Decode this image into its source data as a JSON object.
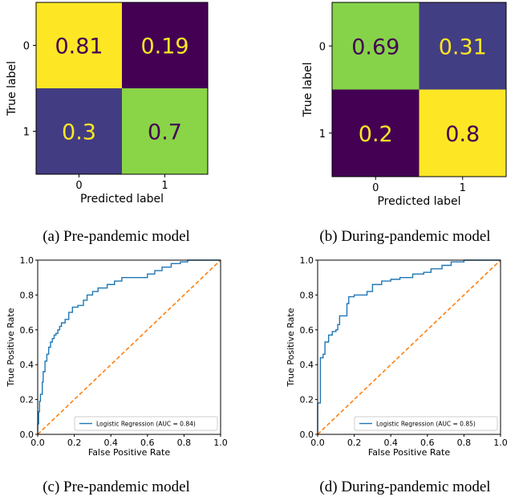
{
  "chart_data": [
    {
      "type": "heatmap",
      "caption": "(a) Pre-pandemic model",
      "xlabel": "Predicted label",
      "ylabel": "True label",
      "x_ticks": [
        "0",
        "1"
      ],
      "y_ticks": [
        "0",
        "1"
      ],
      "values": [
        [
          0.81,
          0.19
        ],
        [
          0.3,
          0.7
        ]
      ],
      "value_labels": [
        [
          "0.81",
          "0.19"
        ],
        [
          "0.3",
          "0.7"
        ]
      ],
      "colormap": "viridis"
    },
    {
      "type": "heatmap",
      "caption": "(b) During-pandemic model",
      "xlabel": "Predicted label",
      "ylabel": "True label",
      "x_ticks": [
        "0",
        "1"
      ],
      "y_ticks": [
        "0",
        "1"
      ],
      "values": [
        [
          0.69,
          0.31
        ],
        [
          0.2,
          0.8
        ]
      ],
      "value_labels": [
        [
          "0.69",
          "0.31"
        ],
        [
          "0.2",
          "0.8"
        ]
      ],
      "colormap": "viridis"
    },
    {
      "type": "line",
      "caption": "(c) Pre-pandemic model",
      "xlabel": "False Positive Rate",
      "ylabel": "True Positive Rate",
      "xlim": [
        0,
        1
      ],
      "ylim": [
        0,
        1
      ],
      "x_ticks": [
        "0.0",
        "0.2",
        "0.4",
        "0.6",
        "0.8",
        "1.0"
      ],
      "y_ticks": [
        "0.0",
        "0.2",
        "0.4",
        "0.6",
        "0.8",
        "1.0"
      ],
      "legend": "lower-right",
      "series": [
        {
          "name": "Logistic Regression (AUC = 0.84)",
          "color": "#1f77b4",
          "points": [
            [
              0,
              0
            ],
            [
              0,
              0.06
            ],
            [
              0.005,
              0.06
            ],
            [
              0.005,
              0.13
            ],
            [
              0.01,
              0.13
            ],
            [
              0.01,
              0.19
            ],
            [
              0.015,
              0.19
            ],
            [
              0.015,
              0.23
            ],
            [
              0.025,
              0.23
            ],
            [
              0.025,
              0.3
            ],
            [
              0.03,
              0.3
            ],
            [
              0.03,
              0.36
            ],
            [
              0.04,
              0.36
            ],
            [
              0.04,
              0.42
            ],
            [
              0.05,
              0.42
            ],
            [
              0.05,
              0.46
            ],
            [
              0.06,
              0.46
            ],
            [
              0.06,
              0.5
            ],
            [
              0.07,
              0.5
            ],
            [
              0.07,
              0.53
            ],
            [
              0.08,
              0.53
            ],
            [
              0.08,
              0.55
            ],
            [
              0.09,
              0.55
            ],
            [
              0.09,
              0.57
            ],
            [
              0.1,
              0.57
            ],
            [
              0.1,
              0.58
            ],
            [
              0.11,
              0.58
            ],
            [
              0.11,
              0.6
            ],
            [
              0.12,
              0.6
            ],
            [
              0.12,
              0.62
            ],
            [
              0.13,
              0.62
            ],
            [
              0.13,
              0.64
            ],
            [
              0.15,
              0.64
            ],
            [
              0.15,
              0.66
            ],
            [
              0.17,
              0.66
            ],
            [
              0.17,
              0.7
            ],
            [
              0.19,
              0.7
            ],
            [
              0.19,
              0.73
            ],
            [
              0.22,
              0.73
            ],
            [
              0.22,
              0.74
            ],
            [
              0.25,
              0.74
            ],
            [
              0.25,
              0.77
            ],
            [
              0.27,
              0.77
            ],
            [
              0.27,
              0.8
            ],
            [
              0.3,
              0.8
            ],
            [
              0.3,
              0.82
            ],
            [
              0.33,
              0.82
            ],
            [
              0.33,
              0.84
            ],
            [
              0.38,
              0.84
            ],
            [
              0.38,
              0.86
            ],
            [
              0.42,
              0.86
            ],
            [
              0.42,
              0.88
            ],
            [
              0.46,
              0.88
            ],
            [
              0.46,
              0.9
            ],
            [
              0.6,
              0.9
            ],
            [
              0.6,
              0.92
            ],
            [
              0.64,
              0.92
            ],
            [
              0.64,
              0.94
            ],
            [
              0.68,
              0.94
            ],
            [
              0.68,
              0.96
            ],
            [
              0.73,
              0.96
            ],
            [
              0.73,
              0.98
            ],
            [
              0.78,
              0.98
            ],
            [
              0.78,
              0.99
            ],
            [
              0.82,
              0.99
            ],
            [
              0.82,
              1
            ],
            [
              1,
              1
            ]
          ]
        },
        {
          "name": "chance",
          "color": "#ff7f0e",
          "dashed": true,
          "points": [
            [
              0,
              0
            ],
            [
              1,
              1
            ]
          ]
        }
      ]
    },
    {
      "type": "line",
      "caption": "(d) During-pandemic model",
      "xlabel": "False Positive Rate",
      "ylabel": "True Positive Rate",
      "xlim": [
        0,
        1
      ],
      "ylim": [
        0,
        1
      ],
      "x_ticks": [
        "0.0",
        "0.2",
        "0.4",
        "0.6",
        "0.8",
        "1.0"
      ],
      "y_ticks": [
        "0.0",
        "0.2",
        "0.4",
        "0.6",
        "0.8",
        "1.0"
      ],
      "legend": "lower-right",
      "series": [
        {
          "name": "Logistic Regression (AUC = 0.85)",
          "color": "#1f77b4",
          "points": [
            [
              0,
              0
            ],
            [
              0,
              0.18
            ],
            [
              0.015,
              0.18
            ],
            [
              0.015,
              0.44
            ],
            [
              0.03,
              0.44
            ],
            [
              0.03,
              0.46
            ],
            [
              0.04,
              0.46
            ],
            [
              0.04,
              0.53
            ],
            [
              0.06,
              0.53
            ],
            [
              0.06,
              0.57
            ],
            [
              0.08,
              0.57
            ],
            [
              0.08,
              0.59
            ],
            [
              0.1,
              0.59
            ],
            [
              0.1,
              0.6
            ],
            [
              0.11,
              0.6
            ],
            [
              0.11,
              0.63
            ],
            [
              0.12,
              0.63
            ],
            [
              0.12,
              0.68
            ],
            [
              0.16,
              0.68
            ],
            [
              0.16,
              0.75
            ],
            [
              0.17,
              0.75
            ],
            [
              0.17,
              0.79
            ],
            [
              0.2,
              0.79
            ],
            [
              0.2,
              0.8
            ],
            [
              0.27,
              0.8
            ],
            [
              0.27,
              0.82
            ],
            [
              0.3,
              0.82
            ],
            [
              0.3,
              0.86
            ],
            [
              0.35,
              0.86
            ],
            [
              0.35,
              0.88
            ],
            [
              0.4,
              0.88
            ],
            [
              0.4,
              0.89
            ],
            [
              0.45,
              0.89
            ],
            [
              0.45,
              0.9
            ],
            [
              0.52,
              0.9
            ],
            [
              0.52,
              0.92
            ],
            [
              0.58,
              0.92
            ],
            [
              0.58,
              0.93
            ],
            [
              0.62,
              0.93
            ],
            [
              0.62,
              0.95
            ],
            [
              0.68,
              0.95
            ],
            [
              0.68,
              0.97
            ],
            [
              0.73,
              0.97
            ],
            [
              0.73,
              0.99
            ],
            [
              0.8,
              0.99
            ],
            [
              0.8,
              1
            ],
            [
              1,
              1
            ]
          ]
        },
        {
          "name": "chance",
          "color": "#ff7f0e",
          "dashed": true,
          "points": [
            [
              0,
              0
            ],
            [
              1,
              1
            ]
          ]
        }
      ]
    }
  ]
}
